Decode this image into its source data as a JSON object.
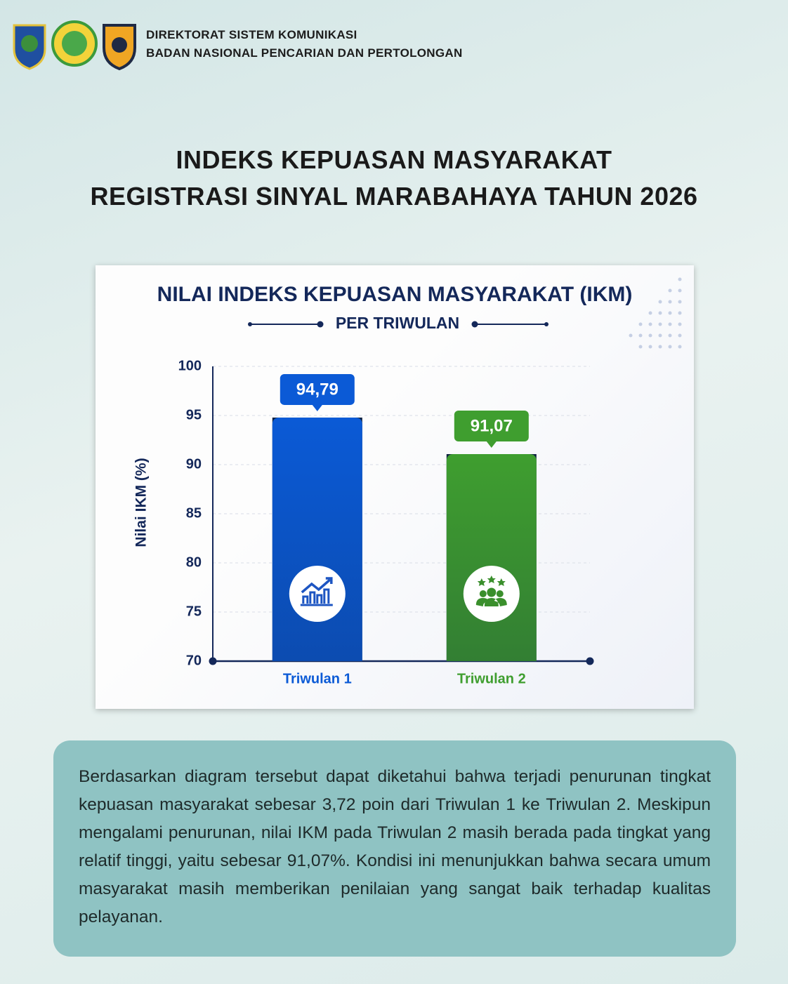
{
  "header": {
    "lines": [
      "DIREKTORAT SISTEM KOMUNIKASI",
      "BADAN NASIONAL PENCARIAN DAN PERTOLONGAN"
    ]
  },
  "title": {
    "lines": [
      "INDEKS KEPUASAN MASYARAKAT",
      "REGISTRASI SINYAL MARABAHAYA TAHUN 2026"
    ]
  },
  "chart_data": {
    "type": "bar",
    "title": "NILAI INDEKS KEPUASAN MASYARAKAT (IKM)",
    "subtitle": "PER TRIWULAN",
    "y_label": "Nilai IKM (%)",
    "categories": [
      "Triwulan 1",
      "Triwulan 2"
    ],
    "values": [
      94.79,
      91.07
    ],
    "value_labels": [
      "94,79",
      "91,07"
    ],
    "colors": [
      "#0b5ad6",
      "#3f9e2f"
    ],
    "ylim": [
      70,
      100
    ],
    "yticks": [
      70,
      75,
      80,
      85,
      90,
      95,
      100
    ],
    "grid": true
  },
  "description": "Berdasarkan diagram tersebut dapat diketahui bahwa terjadi penurunan tingkat kepuasan masyarakat sebesar 3,72 poin dari Triwulan 1 ke Triwulan 2. Meskipun mengalami penurunan, nilai IKM pada Triwulan 2 masih berada pada tingkat yang relatif tinggi, yaitu sebesar 91,07%. Kondisi ini menunjukkan bahwa secara umum masyarakat masih memberikan penilaian yang sangat baik terhadap kualitas pelayanan."
}
